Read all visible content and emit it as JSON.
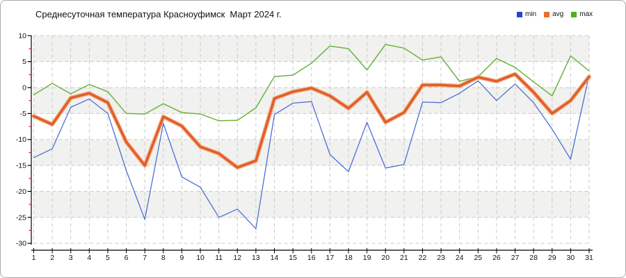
{
  "title": "Среднесуточная температура Красноуфимск  Март 2024 г.",
  "legend": [
    {
      "label": "min",
      "color": "#2744ce"
    },
    {
      "label": "avg",
      "color": "#e8702c"
    },
    {
      "label": "max",
      "color": "#49b11e"
    }
  ],
  "chart_data": {
    "type": "line",
    "title": "Среднесуточная температура Красноуфимск  Март 2024 г.",
    "xlabel": "",
    "ylabel": "",
    "x": [
      1,
      2,
      3,
      4,
      5,
      6,
      7,
      8,
      9,
      10,
      11,
      12,
      13,
      14,
      15,
      16,
      17,
      18,
      19,
      20,
      21,
      22,
      23,
      24,
      25,
      26,
      27,
      28,
      29,
      30,
      31
    ],
    "series": [
      {
        "name": "min",
        "color": "#4d6fd6",
        "width": 1.3,
        "values": [
          -13.5,
          -11.8,
          -3.8,
          -2.2,
          -5.0,
          -16.0,
          -25.4,
          -6.9,
          -17.2,
          -19.2,
          -25.0,
          -23.4,
          -27.2,
          -5.2,
          -3.0,
          -2.7,
          -12.9,
          -16.2,
          -6.7,
          -15.5,
          -14.8,
          -2.8,
          -2.9,
          -1.1,
          1.3,
          -2.5,
          0.7,
          -2.9,
          -8.0,
          -13.8,
          2.4
        ]
      },
      {
        "name": "avg",
        "color": "#de5e2b",
        "halo": "#f4a476",
        "width": 3.2,
        "values": [
          -5.5,
          -7.1,
          -2.0,
          -1.1,
          -2.9,
          -10.5,
          -15.0,
          -5.6,
          -7.4,
          -11.4,
          -12.7,
          -15.4,
          -14.1,
          -2.1,
          -0.8,
          -0.1,
          -1.6,
          -4.0,
          -0.9,
          -6.7,
          -4.8,
          0.5,
          0.5,
          0.3,
          2.0,
          1.2,
          2.6,
          -0.9,
          -5.0,
          -2.5,
          2.1
        ]
      },
      {
        "name": "max",
        "color": "#6db33f",
        "width": 1.5,
        "values": [
          -1.4,
          0.8,
          -1.2,
          0.6,
          -0.8,
          -5.0,
          -5.1,
          -3.1,
          -4.8,
          -5.1,
          -6.4,
          -6.3,
          -3.9,
          2.1,
          2.4,
          4.7,
          8.0,
          7.5,
          3.4,
          8.3,
          7.6,
          5.3,
          5.9,
          1.2,
          2.1,
          5.6,
          3.9,
          1.1,
          -1.6,
          6.1,
          3.2
        ]
      }
    ],
    "ylim": [
      -30,
      10
    ],
    "y_ticks": [
      10,
      5,
      0,
      -5,
      -10,
      -15,
      -20,
      -25,
      -30
    ],
    "y_minor_ticks": [
      7.5,
      2.5,
      -2.5,
      -7.5,
      -12.5,
      -17.5,
      -22.5,
      -27.5
    ],
    "x_tick_labels": [
      "1",
      "2",
      "3",
      "4",
      "5",
      "6",
      "7",
      "8",
      "9",
      "10",
      "11",
      "12",
      "13",
      "14",
      "15",
      "16",
      "17",
      "18",
      "19",
      "20",
      "21",
      "22",
      "23",
      "24",
      "25",
      "26",
      "27",
      "28",
      "29",
      "30",
      "31"
    ],
    "grid": "dashed, vertical per day and horizontal per 5 units",
    "plot_bands": "alternating light-gray 5-unit bands starting at 10..5",
    "legend_position": "top-right"
  },
  "style_colors": {
    "band": "#f1f1ef",
    "gridline": "#c9c9c9",
    "axis": "#000000",
    "minor_tick": "#cc0000",
    "tick_label": "#111111"
  }
}
